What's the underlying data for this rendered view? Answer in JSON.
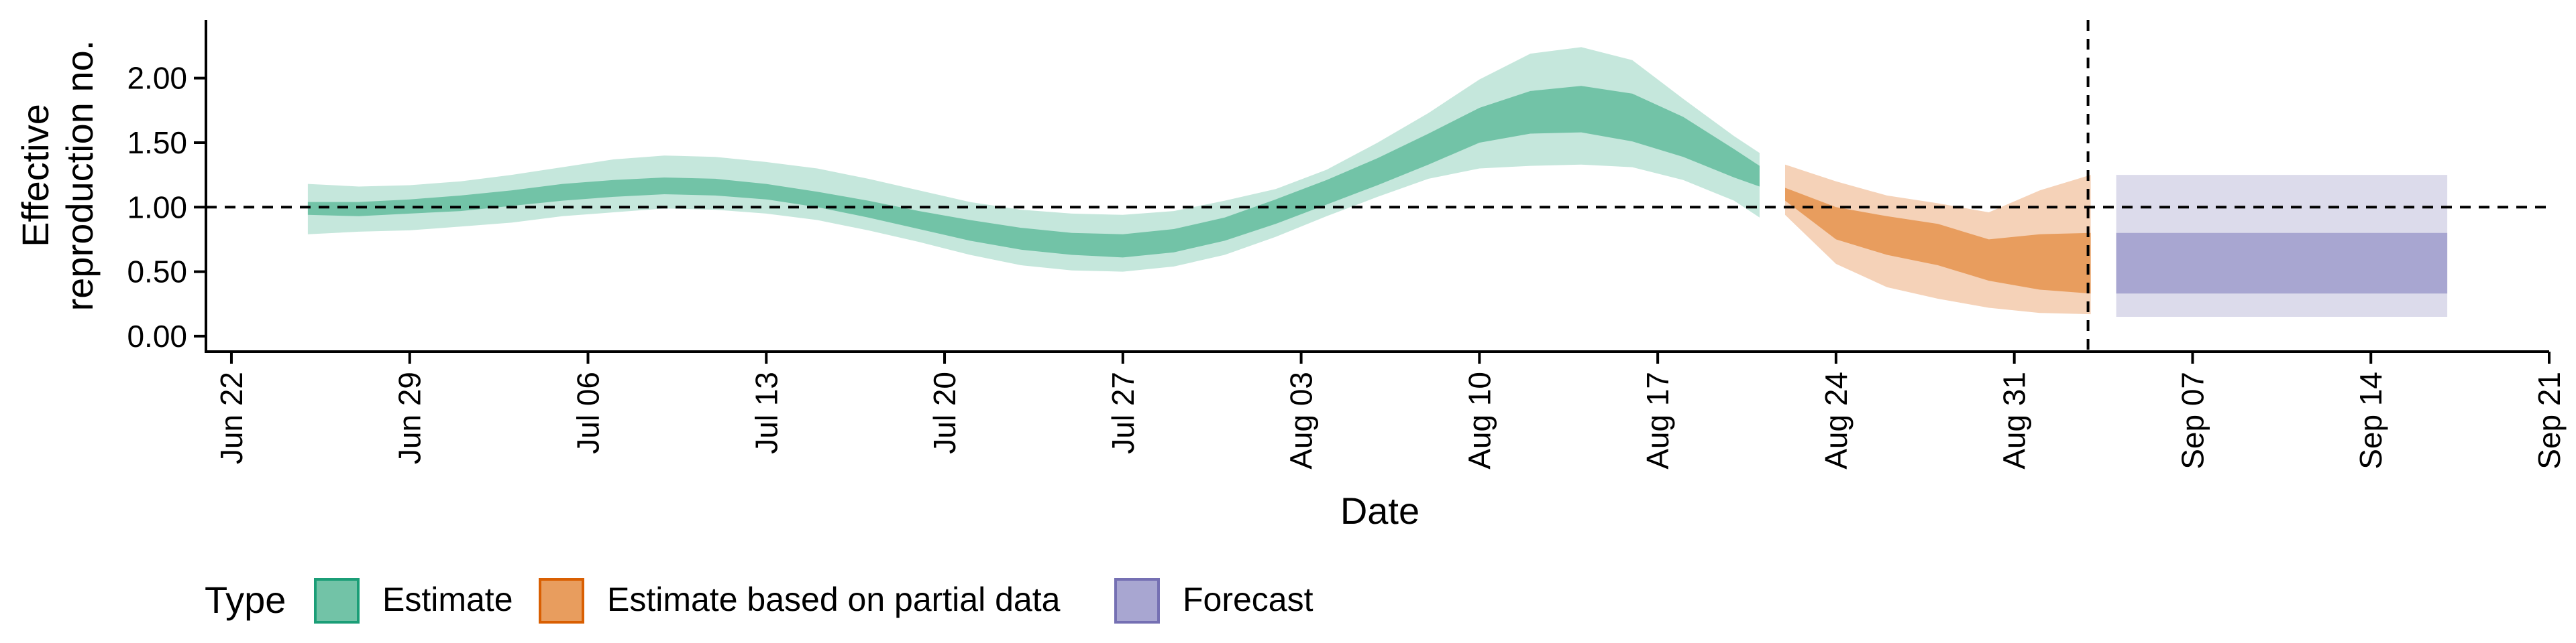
{
  "chart_data": {
    "type": "area",
    "ylabel_lines": [
      "Effective",
      "reproduction no."
    ],
    "xlabel": "Date",
    "y_ticks": [
      0.0,
      0.5,
      1.0,
      1.5,
      2.0
    ],
    "y_tick_labels": [
      "0.00",
      "0.50",
      "1.00",
      "1.50",
      "2.00"
    ],
    "ylim": [
      -0.12,
      2.45
    ],
    "xlim": [
      "2020-06-21",
      "2020-09-21"
    ],
    "x_ticks": [
      "2020-06-22",
      "2020-06-29",
      "2020-07-06",
      "2020-07-13",
      "2020-07-20",
      "2020-07-27",
      "2020-08-03",
      "2020-08-10",
      "2020-08-17",
      "2020-08-24",
      "2020-08-31",
      "2020-09-07",
      "2020-09-14",
      "2020-09-21"
    ],
    "x_tick_labels": [
      "Jun 22",
      "Jun 29",
      "Jul 06",
      "Jul 13",
      "Jul 20",
      "Jul 27",
      "Aug 03",
      "Aug 10",
      "Aug 17",
      "Aug 24",
      "Aug 31",
      "Sep 07",
      "Sep 14",
      "Sep 21"
    ],
    "reference_line_y": 1.0,
    "forecast_start_date": "2020-09-03",
    "legend": {
      "title": "Type",
      "position": "bottom",
      "entries": [
        {
          "label": "Estimate",
          "fill": "#72c3a7",
          "border": "#1b9e77"
        },
        {
          "label": "Estimate based on partial data",
          "fill": "#e89d5e",
          "border": "#d95f02"
        },
        {
          "label": "Forecast",
          "fill": "#a8a6d1",
          "border": "#7570b3"
        }
      ]
    },
    "series": [
      {
        "name": "Estimate",
        "inner_color": "#72c3a7",
        "outer_color": "#c5e7dc",
        "x": [
          "2020-06-25",
          "2020-06-27",
          "2020-06-29",
          "2020-07-01",
          "2020-07-03",
          "2020-07-05",
          "2020-07-07",
          "2020-07-09",
          "2020-07-11",
          "2020-07-13",
          "2020-07-15",
          "2020-07-17",
          "2020-07-19",
          "2020-07-21",
          "2020-07-23",
          "2020-07-25",
          "2020-07-27",
          "2020-07-29",
          "2020-07-31",
          "2020-08-02",
          "2020-08-04",
          "2020-08-06",
          "2020-08-08",
          "2020-08-10",
          "2020-08-12",
          "2020-08-14",
          "2020-08-16",
          "2020-08-18",
          "2020-08-20",
          "2020-08-21"
        ],
        "outer_upper": [
          1.18,
          1.16,
          1.17,
          1.2,
          1.25,
          1.31,
          1.37,
          1.4,
          1.39,
          1.35,
          1.3,
          1.22,
          1.13,
          1.04,
          0.98,
          0.95,
          0.94,
          0.97,
          1.05,
          1.14,
          1.29,
          1.5,
          1.73,
          1.99,
          2.19,
          2.24,
          2.14,
          1.84,
          1.55,
          1.42
        ],
        "inner_upper": [
          1.04,
          1.04,
          1.06,
          1.09,
          1.13,
          1.18,
          1.21,
          1.23,
          1.22,
          1.18,
          1.12,
          1.05,
          0.97,
          0.9,
          0.84,
          0.8,
          0.79,
          0.83,
          0.92,
          1.06,
          1.21,
          1.38,
          1.57,
          1.77,
          1.9,
          1.94,
          1.88,
          1.7,
          1.45,
          1.32
        ],
        "inner_lower": [
          0.94,
          0.93,
          0.95,
          0.97,
          1.01,
          1.05,
          1.08,
          1.1,
          1.09,
          1.06,
          1.0,
          0.92,
          0.83,
          0.74,
          0.67,
          0.63,
          0.61,
          0.65,
          0.74,
          0.87,
          1.02,
          1.17,
          1.33,
          1.5,
          1.57,
          1.58,
          1.51,
          1.39,
          1.23,
          1.16
        ],
        "outer_lower": [
          0.79,
          0.81,
          0.82,
          0.85,
          0.88,
          0.93,
          0.96,
          0.99,
          0.98,
          0.95,
          0.9,
          0.82,
          0.73,
          0.63,
          0.55,
          0.51,
          0.5,
          0.54,
          0.63,
          0.77,
          0.93,
          1.08,
          1.22,
          1.3,
          1.32,
          1.33,
          1.31,
          1.21,
          1.05,
          0.92
        ]
      },
      {
        "name": "Estimate based on partial data",
        "inner_color": "#e89d5e",
        "outer_color": "#f5d2b8",
        "x": [
          "2020-08-22",
          "2020-08-24",
          "2020-08-26",
          "2020-08-28",
          "2020-08-30",
          "2020-09-01",
          "2020-09-03"
        ],
        "outer_upper": [
          1.33,
          1.2,
          1.09,
          1.03,
          0.96,
          1.13,
          1.25
        ],
        "inner_upper": [
          1.15,
          1.0,
          0.93,
          0.87,
          0.75,
          0.79,
          0.8
        ],
        "inner_lower": [
          1.05,
          0.75,
          0.63,
          0.55,
          0.43,
          0.36,
          0.33
        ],
        "outer_lower": [
          0.94,
          0.56,
          0.38,
          0.29,
          0.22,
          0.18,
          0.17
        ]
      },
      {
        "name": "Forecast",
        "inner_color": "#a8a6d1",
        "outer_color": "#dcdbeb",
        "x": [
          "2020-09-04",
          "2020-09-17"
        ],
        "outer_upper": [
          1.25,
          1.25
        ],
        "inner_upper": [
          0.8,
          0.8
        ],
        "inner_lower": [
          0.33,
          0.33
        ],
        "outer_lower": [
          0.15,
          0.15
        ]
      }
    ]
  }
}
